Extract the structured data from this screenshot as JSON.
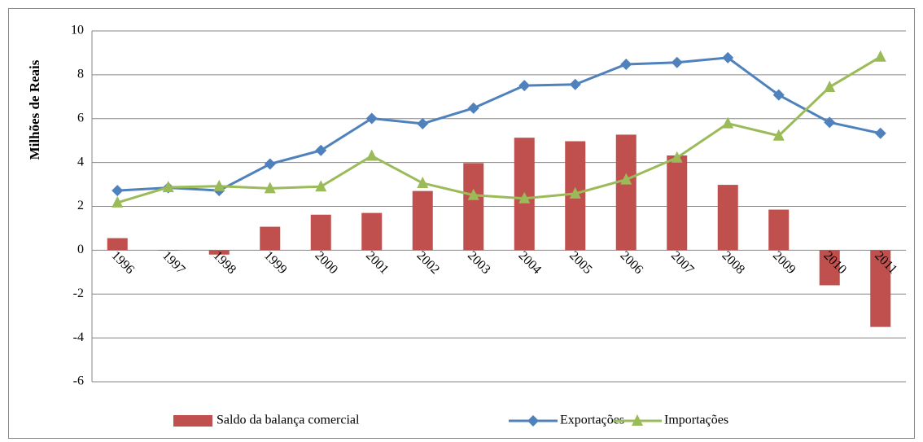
{
  "chart_data": {
    "type": "combo",
    "y_label": "Milhões de Reais",
    "categories": [
      "1996",
      "1997",
      "1998",
      "1999",
      "2000",
      "2001",
      "2002",
      "2003",
      "2004",
      "2005",
      "2006",
      "2007",
      "2008",
      "2009",
      "2010",
      "2011"
    ],
    "series": [
      {
        "name": "Saldo da balança comercial",
        "type": "bar",
        "color": "#c0504d",
        "values": [
          0.55,
          -0.02,
          -0.2,
          1.07,
          1.62,
          1.7,
          2.7,
          3.97,
          5.13,
          4.97,
          5.27,
          4.32,
          2.98,
          1.85,
          -1.6,
          -3.5
        ]
      },
      {
        "name": "Exportações",
        "type": "line",
        "marker": "diamond",
        "color": "#4f81bd",
        "values": [
          2.72,
          2.85,
          2.72,
          3.93,
          4.55,
          6.01,
          5.77,
          6.48,
          7.51,
          7.56,
          8.48,
          8.56,
          8.78,
          7.08,
          5.83,
          5.33
        ]
      },
      {
        "name": "Importações",
        "type": "line",
        "marker": "triangle",
        "color": "#9bbb59",
        "values": [
          2.17,
          2.87,
          2.92,
          2.82,
          2.9,
          4.3,
          3.06,
          2.51,
          2.36,
          2.58,
          3.22,
          4.22,
          5.78,
          5.22,
          7.44,
          8.82
        ]
      }
    ],
    "ylim": [
      -6,
      10
    ],
    "yticks": [
      -6,
      -4,
      -2,
      0,
      2,
      4,
      6,
      8,
      10
    ],
    "grid": true,
    "legend": "bottom"
  }
}
